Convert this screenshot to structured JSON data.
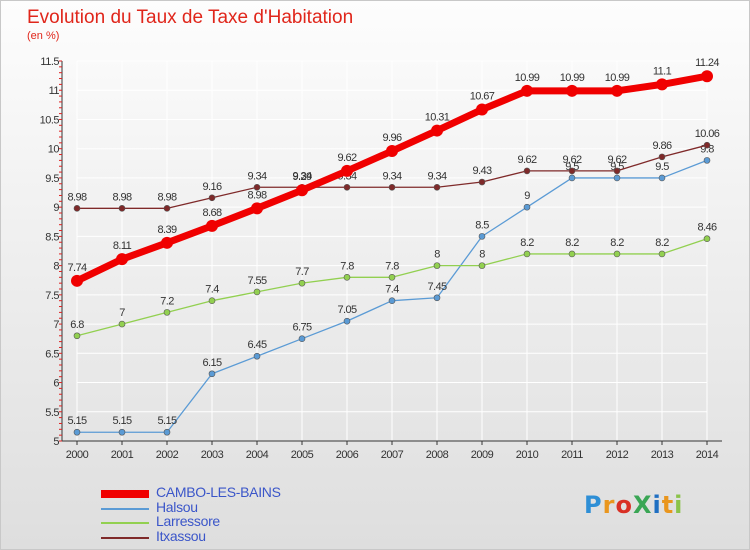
{
  "title": "Evolution du Taux de Taxe d'Habitation",
  "unit_label": "(en %)",
  "logo_text": "ProXiti",
  "chart_data": {
    "type": "line",
    "x": [
      2000,
      2001,
      2002,
      2003,
      2004,
      2005,
      2006,
      2007,
      2008,
      2009,
      2010,
      2011,
      2012,
      2013,
      2014
    ],
    "xlim": [
      2000,
      2014
    ],
    "ylim": [
      5,
      11.5
    ],
    "y_ticks": [
      "5",
      "5.5",
      "6",
      "6.5",
      "7",
      "7.5",
      "8",
      "8.5",
      "9",
      "9.5",
      "10",
      "10.5",
      "11",
      "11.5"
    ],
    "grid": true,
    "legend_position": "bottom-left",
    "series": [
      {
        "name": "CAMBO-LES-BAINS",
        "color": "#f00000",
        "values": [
          7.74,
          8.11,
          8.39,
          8.68,
          8.98,
          9.29,
          9.62,
          9.96,
          10.31,
          10.67,
          10.99,
          10.99,
          10.99,
          11.1,
          11.24
        ],
        "labels": [
          "7.74",
          "8.11",
          "8.39",
          "8.68",
          "8.98",
          "9.29",
          "9.62",
          "9.96",
          "10.31",
          "10.67",
          "10.99",
          "10.99",
          "10.99",
          "11.1",
          "11.24"
        ]
      },
      {
        "name": "Halsou",
        "color": "#5b9bd5",
        "values": [
          5.15,
          5.15,
          5.15,
          6.15,
          6.45,
          6.75,
          7.05,
          7.4,
          7.45,
          8.5,
          9,
          9.5,
          9.5,
          9.5,
          9.8
        ],
        "labels": [
          "5.15",
          "5.15",
          "5.15",
          "6.15",
          "6.45",
          "6.75",
          "7.05",
          "7.4",
          "7.45",
          "8.5",
          "9",
          "9.5",
          "9.5",
          "9.5",
          "9.8"
        ]
      },
      {
        "name": "Larressore",
        "color": "#92d050",
        "values": [
          6.8,
          7,
          7.2,
          7.4,
          7.55,
          7.7,
          7.8,
          7.8,
          8,
          8,
          8.2,
          8.2,
          8.2,
          8.2,
          8.46
        ],
        "labels": [
          "6.8",
          "7",
          "7.2",
          "7.4",
          "7.55",
          "7.7",
          "7.8",
          "7.8",
          "8",
          "8",
          "8.2",
          "8.2",
          "8.2",
          "8.2",
          "8.46"
        ]
      },
      {
        "name": "Itxassou",
        "color": "#7f2a2a",
        "values": [
          8.98,
          8.98,
          8.98,
          9.16,
          9.34,
          9.34,
          9.34,
          9.34,
          9.34,
          9.43,
          9.62,
          9.62,
          9.62,
          9.86,
          10.06
        ],
        "labels": [
          "8.98",
          "8.98",
          "8.98",
          "9.16",
          "9.34",
          "9.34",
          "9.34",
          "9.34",
          "9.34",
          "9.43",
          "9.62",
          "9.62",
          "9.62",
          "9.86",
          "10.06"
        ]
      }
    ]
  }
}
